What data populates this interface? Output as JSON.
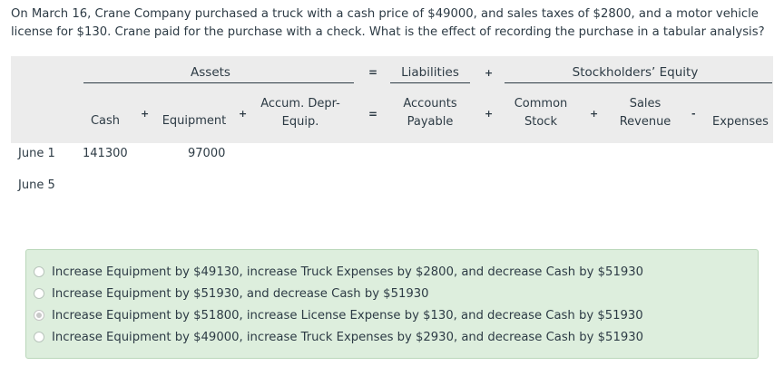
{
  "question": "On March 16, Crane Company purchased a truck with a cash price of $49000, and sales taxes of $2800, and a motor vehicle license for $130. Crane paid for the purchase with a check. What is the effect of recording the purchase in a tabular analysis?",
  "table": {
    "groups": {
      "assets": "Assets",
      "equals": "=",
      "liabilities": "Liabilities",
      "plus": "+",
      "equity": "Stockholders’ Equity"
    },
    "columns": {
      "cash": "Cash",
      "equipment": "Equipment",
      "accum_depr_line1": "Accum. Depr-",
      "accum_depr_line2": "Equip.",
      "accounts_payable_line1": "Accounts",
      "accounts_payable_line2": "Payable",
      "common_stock_line1": "Common",
      "common_stock_line2": "Stock",
      "sales_revenue_line1": "Sales",
      "sales_revenue_line2": "Revenue",
      "expenses": "Expenses"
    },
    "operators": {
      "plus": "+",
      "equals": "=",
      "minus": "-"
    },
    "rows": [
      {
        "label": "June 1",
        "cash": "141300",
        "equipment": "97000"
      },
      {
        "label": "June 5",
        "cash": "",
        "equipment": ""
      }
    ]
  },
  "options": [
    {
      "text": "Increase Equipment by $49130, increase Truck Expenses by $2800, and decrease Cash by $51930",
      "selected": false
    },
    {
      "text": "Increase Equipment by $51930, and decrease Cash by $51930",
      "selected": false
    },
    {
      "text": "Increase Equipment by $51800, increase License Expense by $130, and decrease Cash by $51930",
      "selected": true
    },
    {
      "text": "Increase Equipment by $49000, increase Truck Expenses by $2930, and decrease Cash by $51930",
      "selected": false
    }
  ]
}
